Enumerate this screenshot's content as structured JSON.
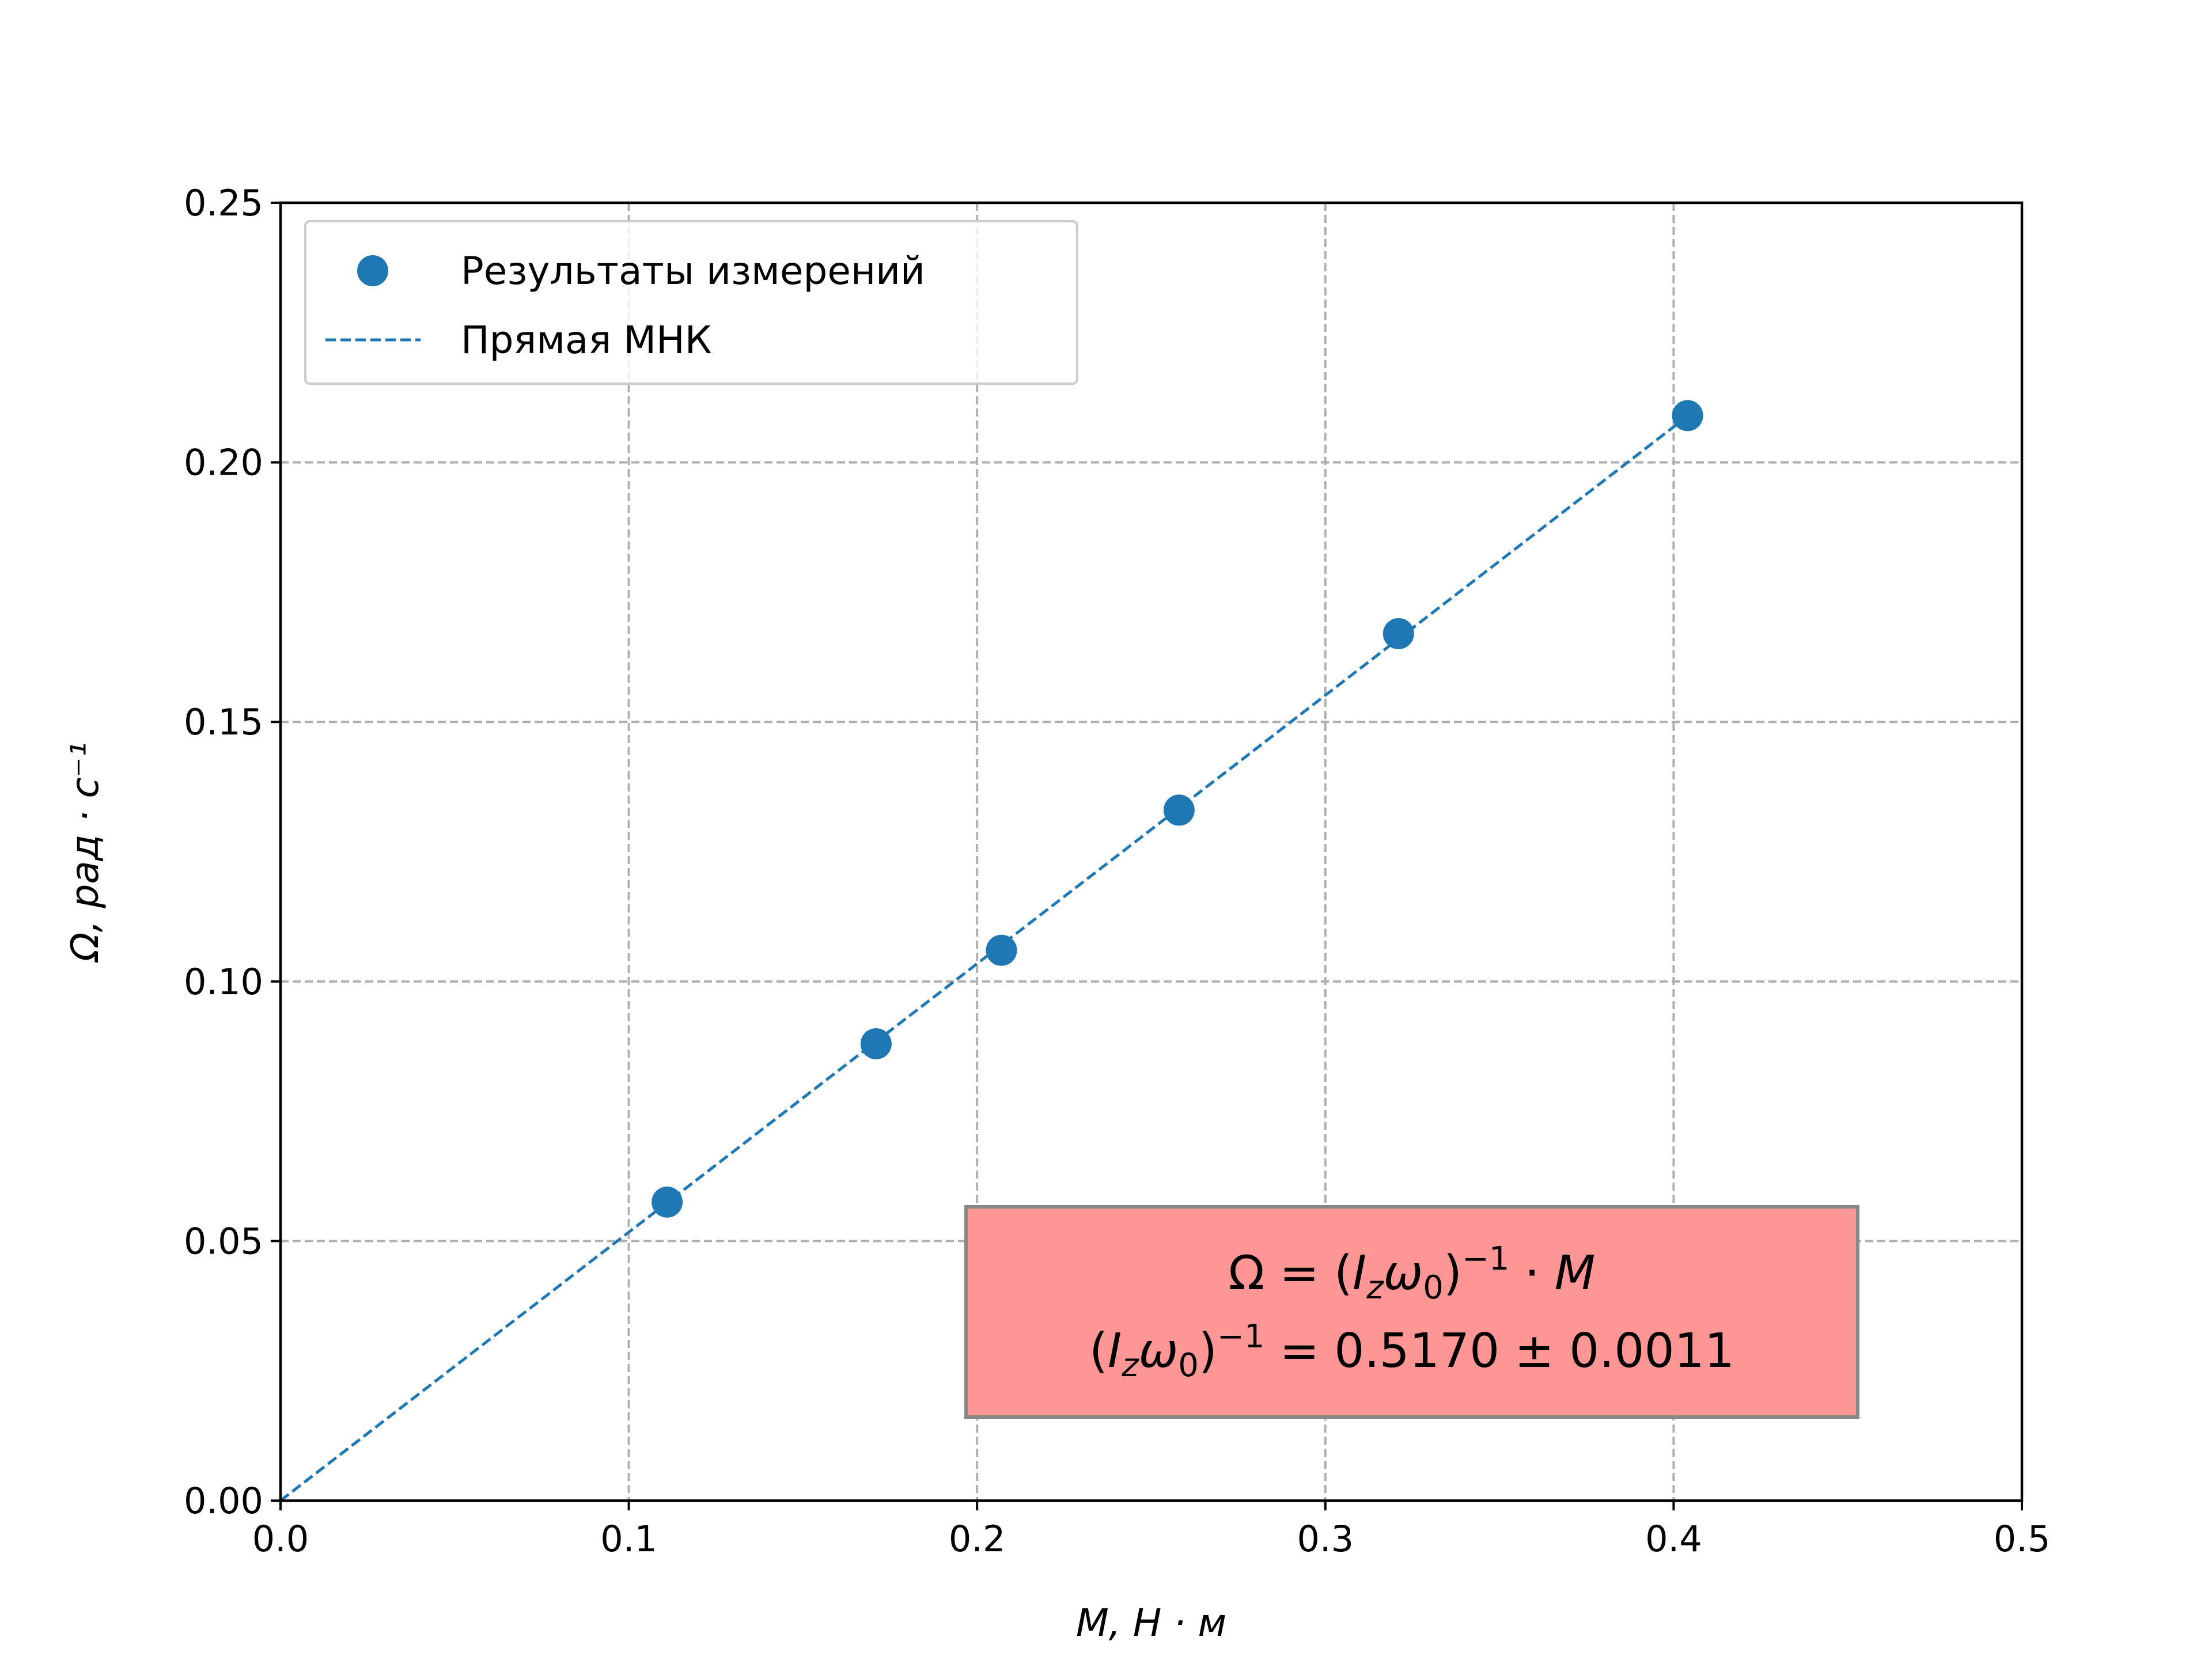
{
  "chart_data": {
    "type": "scatter",
    "series": [
      {
        "name": "Результаты измерений",
        "kind": "scatter",
        "color": "#1f77b4",
        "x": [
          0.111,
          0.171,
          0.207,
          0.258,
          0.321,
          0.404
        ],
        "y": [
          0.0575,
          0.088,
          0.106,
          0.133,
          0.167,
          0.209
        ]
      },
      {
        "name": "Прямая МНК",
        "kind": "line",
        "style": "dashed",
        "color": "#1f77b4",
        "x": [
          0.0,
          0.404
        ],
        "y": [
          0.0,
          0.2089
        ]
      }
    ],
    "xlabel": "M, Н · м",
    "ylabel": "Ω, рад · с⁻¹",
    "xlim": [
      0.0,
      0.5
    ],
    "ylim": [
      0.0,
      0.25
    ],
    "xticks": [
      "0.0",
      "0.1",
      "0.2",
      "0.3",
      "0.4",
      "0.5"
    ],
    "yticks": [
      "0.00",
      "0.05",
      "0.10",
      "0.15",
      "0.20",
      "0.25"
    ],
    "grid": true,
    "legend_position": "top-left",
    "annotation": {
      "line1": "Ω = (I_zω_0)⁻¹ · M",
      "line2_value": "= 0.5170 ± 0.0011",
      "background": "#ff9696"
    }
  }
}
